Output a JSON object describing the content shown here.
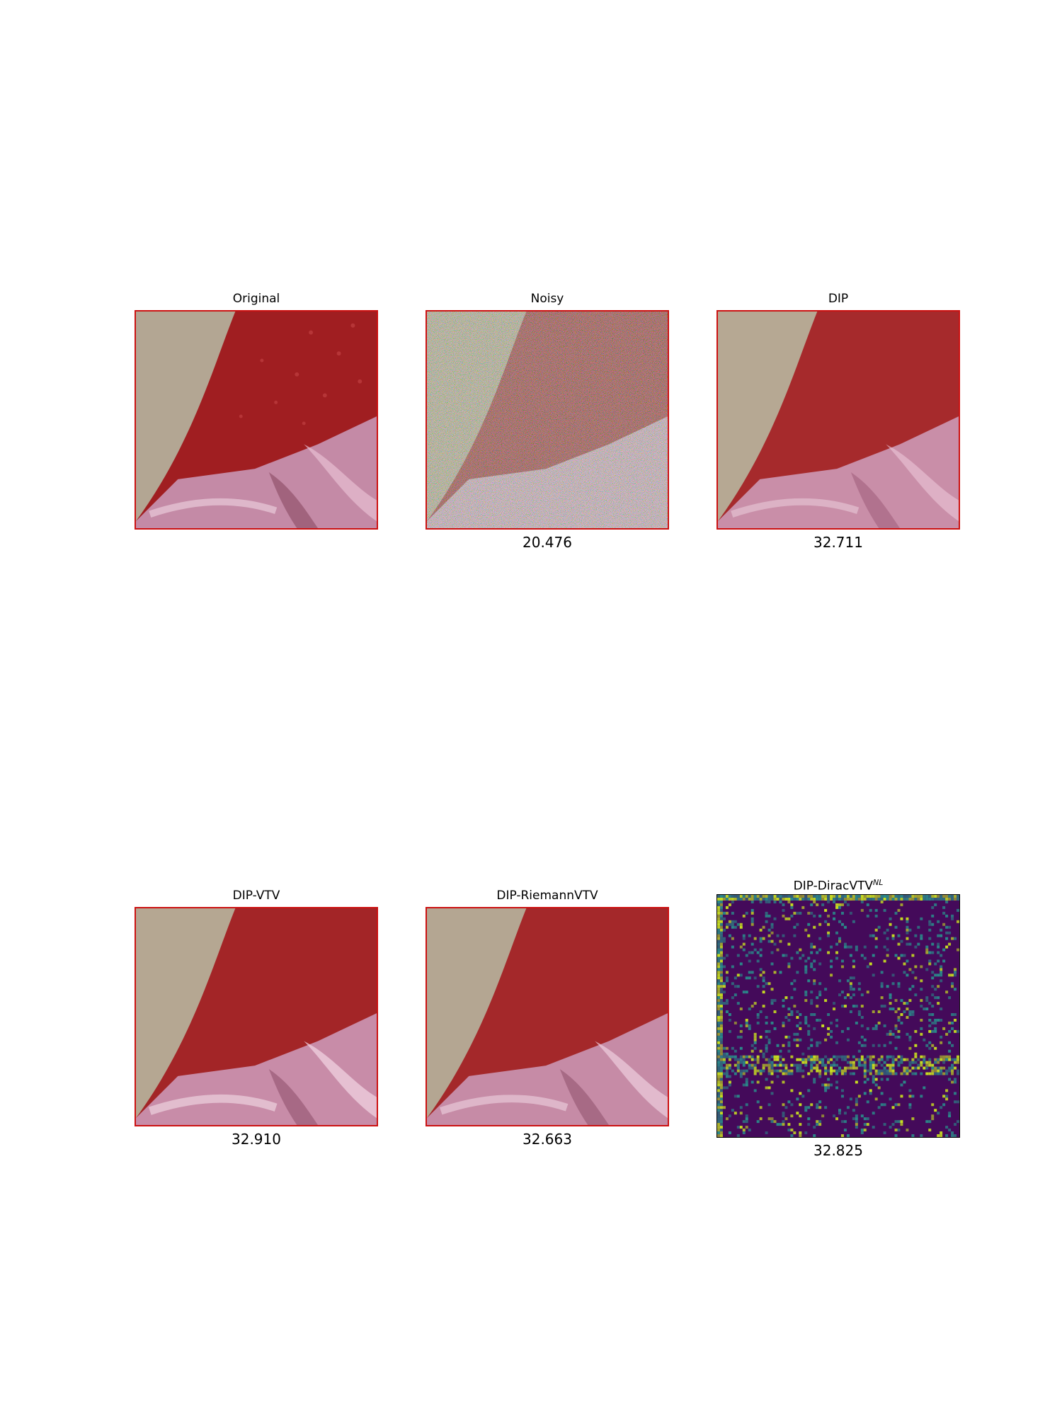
{
  "figure": {
    "panels": [
      {
        "id": "original",
        "title": "Original",
        "score": ""
      },
      {
        "id": "noisy",
        "title": "Noisy",
        "score": "20.476"
      },
      {
        "id": "dip",
        "title": "DIP",
        "score": "32.711"
      },
      {
        "id": "dip-vtv",
        "title": "DIP-VTV",
        "score": "32.910"
      },
      {
        "id": "dip-riemannvtv",
        "title": "DIP-RiemannVTV",
        "score": "32.663"
      },
      {
        "id": "dip-diracvtv",
        "title": "DIP-DiracVTV",
        "title_sup": "NL",
        "score": "32.825"
      }
    ],
    "colors": {
      "frame": "#cc1111",
      "skin": "#b3a693",
      "fabric_red": "#a01e21",
      "satin_pink": "#c48aa6",
      "heatmap_bg": "#440a5a",
      "heatmap_mid": "#2a8a8a",
      "heatmap_hi": "#c8e020"
    }
  }
}
